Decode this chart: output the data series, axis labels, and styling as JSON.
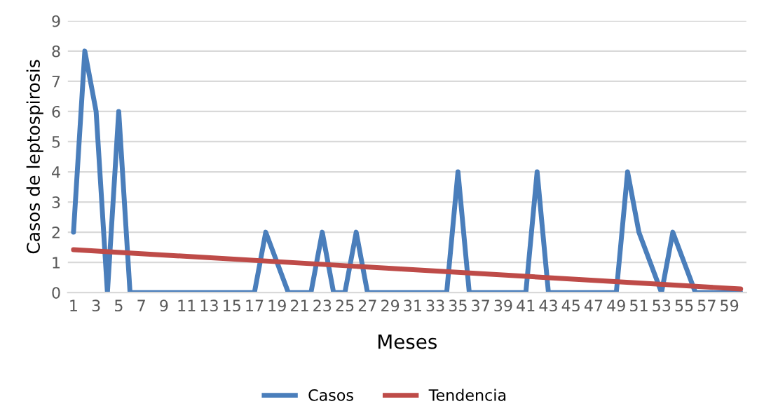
{
  "chart_data": {
    "type": "line",
    "xlabel": "Meses",
    "ylabel": "Casos de leptospirosis",
    "x": [
      1,
      2,
      3,
      4,
      5,
      6,
      7,
      8,
      9,
      10,
      11,
      12,
      13,
      14,
      15,
      16,
      17,
      18,
      19,
      20,
      21,
      22,
      23,
      24,
      25,
      26,
      27,
      28,
      29,
      30,
      31,
      32,
      33,
      34,
      35,
      36,
      37,
      38,
      39,
      40,
      41,
      42,
      43,
      44,
      45,
      46,
      47,
      48,
      49,
      50,
      51,
      52,
      53,
      54,
      55,
      56,
      57,
      58,
      59,
      60
    ],
    "series": [
      {
        "name": "Casos",
        "color": "#4a7ebb",
        "values": [
          2,
          8,
          6,
          0,
          6,
          0,
          0,
          0,
          0,
          0,
          0,
          0,
          0,
          0,
          0,
          0,
          0,
          2,
          1,
          0,
          0,
          0,
          2,
          0,
          0,
          2,
          0,
          0,
          0,
          0,
          0,
          0,
          0,
          0,
          4,
          0,
          0,
          0,
          0,
          0,
          0,
          4,
          0,
          0,
          0,
          0,
          0,
          0,
          0,
          4,
          2,
          1,
          0,
          2,
          1,
          0,
          0,
          0,
          0,
          0
        ]
      },
      {
        "name": "Tendencia",
        "color": "#be4b48",
        "x": [
          1,
          60
        ],
        "values": [
          1.42,
          0.12
        ]
      }
    ],
    "xlim": [
      0.5,
      60.5
    ],
    "xticks": [
      1,
      3,
      5,
      7,
      9,
      11,
      13,
      15,
      17,
      19,
      21,
      23,
      25,
      27,
      29,
      31,
      33,
      35,
      37,
      39,
      41,
      43,
      45,
      47,
      49,
      51,
      53,
      55,
      57,
      59
    ],
    "ylim": [
      0,
      9
    ],
    "yticks": [
      0,
      1,
      2,
      3,
      4,
      5,
      6,
      7,
      8,
      9
    ],
    "grid": "y",
    "legend": "bottom",
    "marker": "none",
    "line_style": "solid"
  }
}
